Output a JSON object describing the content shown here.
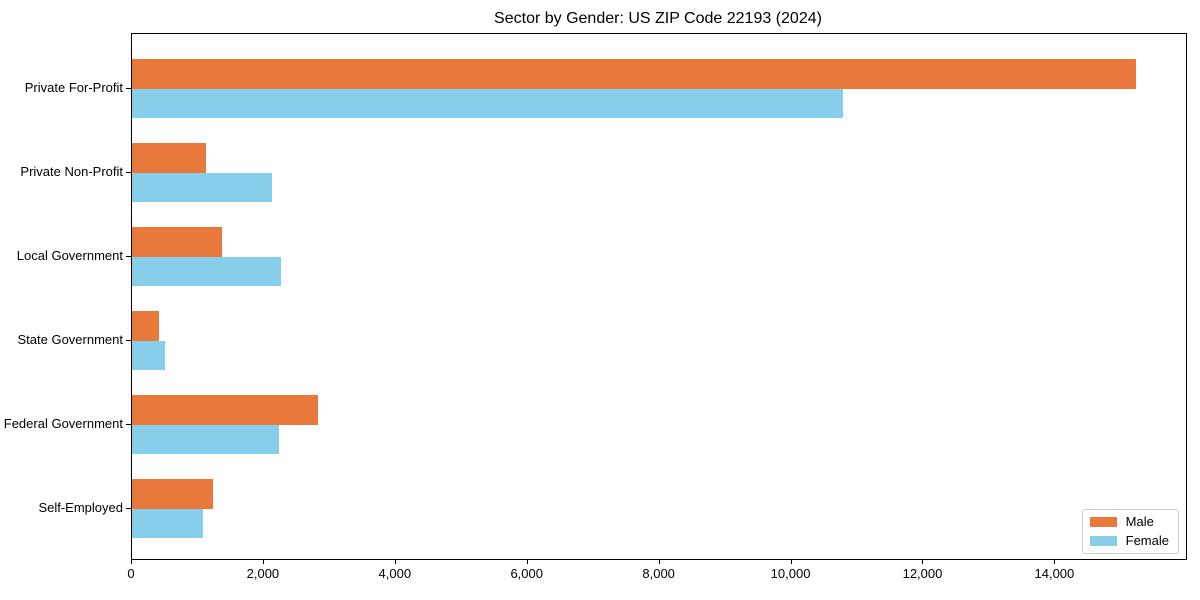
{
  "chart_data": {
    "type": "bar",
    "orientation": "horizontal",
    "title": "Sector by Gender: US ZIP Code 22193 (2024)",
    "categories": [
      "Private For-Profit",
      "Private Non-Profit",
      "Local Government",
      "State Government",
      "Federal Government",
      "Self-Employed"
    ],
    "series": [
      {
        "name": "Male",
        "color": "#e8793b",
        "values": [
          15220,
          1120,
          1370,
          415,
          2820,
          1230
        ]
      },
      {
        "name": "Female",
        "color": "#87ceea",
        "values": [
          10780,
          2130,
          2260,
          505,
          2230,
          1070
        ]
      }
    ],
    "xlabel": "",
    "ylabel": "",
    "xlim": [
      0,
      15980
    ],
    "xticks": [
      0,
      2000,
      4000,
      6000,
      8000,
      10000,
      12000,
      14000
    ],
    "xtick_labels": [
      "0",
      "2,000",
      "4,000",
      "6,000",
      "8,000",
      "10,000",
      "12,000",
      "14,000"
    ],
    "grid": false,
    "legend": {
      "position": "lower right"
    },
    "colors": {
      "spine": "#000000",
      "legend_border": "#cccccc",
      "background": "#ffffff"
    }
  }
}
